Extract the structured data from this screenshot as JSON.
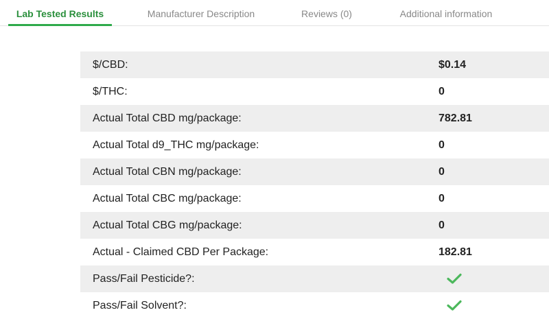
{
  "tabs": [
    {
      "label": "Lab Tested Results",
      "active": true
    },
    {
      "label": "Manufacturer Description",
      "active": false
    },
    {
      "label": "Reviews (0)",
      "active": false
    },
    {
      "label": "Additional information",
      "active": false
    }
  ],
  "results": [
    {
      "label": "$/CBD:",
      "value": "$0.14"
    },
    {
      "label": "$/THC:",
      "value": "0"
    },
    {
      "label": "Actual Total CBD mg/package:",
      "value": "782.81"
    },
    {
      "label": "Actual Total d9_THC mg/package:",
      "value": "0"
    },
    {
      "label": "Actual Total CBN mg/package:",
      "value": "0"
    },
    {
      "label": "Actual Total CBC mg/package:",
      "value": "0"
    },
    {
      "label": "Actual Total CBG mg/package:",
      "value": "0"
    },
    {
      "label": "Actual - Claimed CBD Per Package:",
      "value": "182.81"
    },
    {
      "label": "Pass/Fail Pesticide?:",
      "icon": "checkmark-icon"
    },
    {
      "label": "Pass/Fail Solvent?:",
      "icon": "checkmark-icon"
    }
  ],
  "colors": {
    "accent": "#2eaa4b",
    "row_shade": "#eeeeee",
    "check": "#4cb85c"
  }
}
